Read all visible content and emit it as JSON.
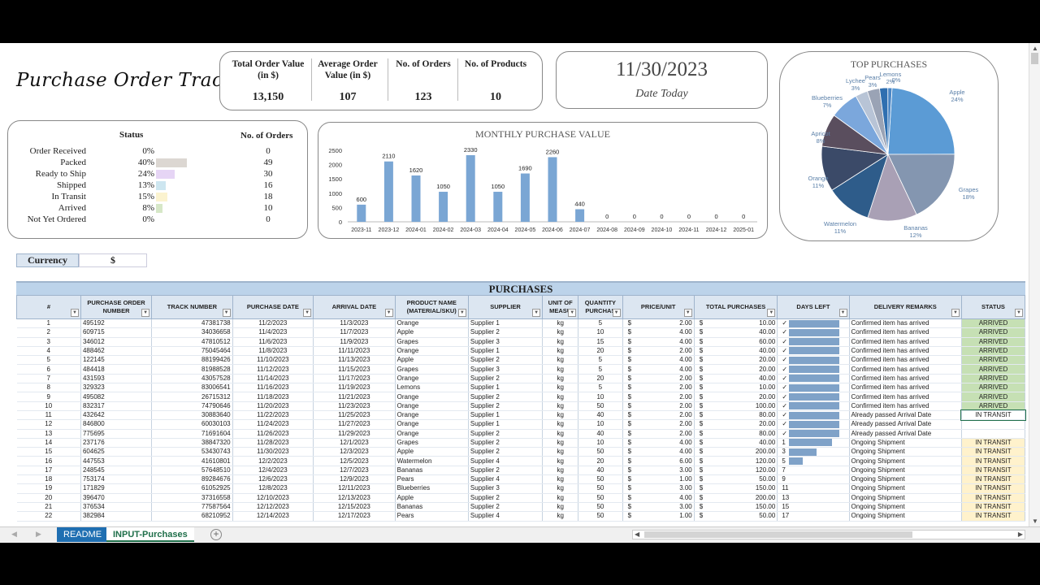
{
  "title": "Purchase Order Tracker",
  "kpis": [
    {
      "label": "Total Order Value (in $)",
      "value": "13,150"
    },
    {
      "label": "Average Order Value (in $)",
      "value": "107"
    },
    {
      "label": "No. of Orders",
      "value": "123"
    },
    {
      "label": "No. of Products",
      "value": "10"
    }
  ],
  "date": {
    "value": "11/30/2023",
    "caption": "Date Today"
  },
  "status_summary": {
    "header_status": "Status",
    "header_orders": "No. of Orders",
    "rows": [
      {
        "label": "Order Received",
        "pct": "0%",
        "count": "0",
        "fraction": 0.0,
        "color": "#d9d9d9"
      },
      {
        "label": "Packed",
        "pct": "40%",
        "count": "49",
        "fraction": 0.4,
        "color": "#dcd7d2"
      },
      {
        "label": "Ready to Ship",
        "pct": "24%",
        "count": "30",
        "fraction": 0.24,
        "color": "#e6d5f5"
      },
      {
        "label": "Shipped",
        "pct": "13%",
        "count": "16",
        "fraction": 0.13,
        "color": "#cde6f0"
      },
      {
        "label": "In Transit",
        "pct": "15%",
        "count": "18",
        "fraction": 0.15,
        "color": "#fbf3cf"
      },
      {
        "label": "Arrived",
        "pct": "8%",
        "count": "10",
        "fraction": 0.08,
        "color": "#d6e7c7"
      },
      {
        "label": "Not Yet Ordered",
        "pct": "0%",
        "count": "0",
        "fraction": 0.0,
        "color": "#d9d9d9"
      }
    ]
  },
  "chart_data": [
    {
      "type": "bar",
      "title": "MONTHLY PURCHASE VALUE",
      "categories": [
        "2023-11",
        "2023-12",
        "2024-01",
        "2024-02",
        "2024-03",
        "2024-04",
        "2024-05",
        "2024-06",
        "2024-07",
        "2024-08",
        "2024-09",
        "2024-10",
        "2024-11",
        "2024-12",
        "2025-01"
      ],
      "values": [
        600,
        2110,
        1620,
        1050,
        2330,
        1050,
        1690,
        2260,
        440,
        0,
        0,
        0,
        0,
        0,
        0
      ],
      "data_labels": [
        "600",
        "2110",
        "1620",
        "1050",
        "2330",
        "1050",
        "1690",
        "2260",
        "440",
        "0",
        "0",
        "0",
        "0",
        "0",
        "0"
      ],
      "yticks": [
        "0",
        "500",
        "1000",
        "1500",
        "2000",
        "2500"
      ],
      "ylim": [
        0,
        2500
      ],
      "color": "#7aa6d4"
    },
    {
      "type": "pie",
      "title": "TOP PURCHASES",
      "slices": [
        {
          "label": "Apple",
          "pct": "24%",
          "value": 24,
          "color": "#5b9bd5"
        },
        {
          "label": "Grapes",
          "pct": "18%",
          "value": 18,
          "color": "#8496b0"
        },
        {
          "label": "Bananas",
          "pct": "12%",
          "value": 12,
          "color": "#a9a0b5"
        },
        {
          "label": "Watermelon",
          "pct": "11%",
          "value": 11,
          "color": "#2e5c8a"
        },
        {
          "label": "Orange",
          "pct": "11%",
          "value": 11,
          "color": "#3b4a68"
        },
        {
          "label": "Apricot",
          "pct": "8%",
          "value": 8,
          "color": "#5a4e5e"
        },
        {
          "label": "Blueberries",
          "pct": "7%",
          "value": 7,
          "color": "#7ba7dc"
        },
        {
          "label": "Lychee",
          "pct": "3%",
          "value": 3,
          "color": "#b8c4d6"
        },
        {
          "label": "Pears",
          "pct": "3%",
          "value": 3,
          "color": "#9aa3b5"
        },
        {
          "label": "Lemons",
          "pct": "2%",
          "value": 2,
          "color": "#2f6fb0"
        },
        {
          "label": "",
          "pct": "0%",
          "value": 1,
          "color": "#4a86c5"
        }
      ]
    }
  ],
  "currency": {
    "label": "Currency",
    "value": "$"
  },
  "table": {
    "title": "PURCHASES",
    "headers": [
      "#",
      "PURCHASE ORDER NUMBER",
      "TRACK NUMBER",
      "PURCHASE DATE",
      "ARRIVAL DATE",
      "PRODUCT NAME (MATERIAL/SKU)",
      "SUPPLIER",
      "UNIT OF MEASU",
      "QUANTITY PURCHAS",
      "PRICE/UNIT",
      "TOTAL PURCHASES",
      "DAYS LEFT",
      "DELIVERY REMARKS",
      "STATUS"
    ],
    "rows": [
      [
        "1",
        "495192",
        "47381738",
        "11/2/2023",
        "11/3/2023",
        "Orange",
        "Supplier 1",
        "kg",
        "5",
        "2.00",
        "10.00",
        "✓",
        "Confirmed item has arrived",
        "ARRIVED"
      ],
      [
        "2",
        "609715",
        "34036658",
        "11/4/2023",
        "11/7/2023",
        "Apple",
        "Supplier 2",
        "kg",
        "10",
        "4.00",
        "40.00",
        "✓",
        "Confirmed item has arrived",
        "ARRIVED"
      ],
      [
        "3",
        "346012",
        "47810512",
        "11/6/2023",
        "11/9/2023",
        "Grapes",
        "Supplier 3",
        "kg",
        "15",
        "4.00",
        "60.00",
        "✓",
        "Confirmed item has arrived",
        "ARRIVED"
      ],
      [
        "4",
        "488462",
        "75045464",
        "11/8/2023",
        "11/11/2023",
        "Orange",
        "Supplier 1",
        "kg",
        "20",
        "2.00",
        "40.00",
        "✓",
        "Confirmed item has arrived",
        "ARRIVED"
      ],
      [
        "5",
        "122145",
        "88199426",
        "11/10/2023",
        "11/13/2023",
        "Apple",
        "Supplier 2",
        "kg",
        "5",
        "4.00",
        "20.00",
        "✓",
        "Confirmed item has arrived",
        "ARRIVED"
      ],
      [
        "6",
        "484418",
        "81988528",
        "11/12/2023",
        "11/15/2023",
        "Grapes",
        "Supplier 3",
        "kg",
        "5",
        "4.00",
        "20.00",
        "✓",
        "Confirmed item has arrived",
        "ARRIVED"
      ],
      [
        "7",
        "431593",
        "43057528",
        "11/14/2023",
        "11/17/2023",
        "Orange",
        "Supplier 2",
        "kg",
        "20",
        "2.00",
        "40.00",
        "✓",
        "Confirmed item has arrived",
        "ARRIVED"
      ],
      [
        "8",
        "329323",
        "83006541",
        "11/16/2023",
        "11/19/2023",
        "Lemons",
        "Supplier 1",
        "kg",
        "5",
        "2.00",
        "10.00",
        "✓",
        "Confirmed item has arrived",
        "ARRIVED"
      ],
      [
        "9",
        "495082",
        "26715312",
        "11/18/2023",
        "11/21/2023",
        "Orange",
        "Supplier 2",
        "kg",
        "10",
        "2.00",
        "20.00",
        "✓",
        "Confirmed item has arrived",
        "ARRIVED"
      ],
      [
        "10",
        "832317",
        "74790646",
        "11/20/2023",
        "11/23/2023",
        "Orange",
        "Supplier 2",
        "kg",
        "50",
        "2.00",
        "100.00",
        "✓",
        "Confirmed item has arrived",
        "ARRIVED"
      ],
      [
        "11",
        "432642",
        "30883640",
        "11/22/2023",
        "11/25/2023",
        "Orange",
        "Supplier 1",
        "kg",
        "40",
        "2.00",
        "80.00",
        "✓",
        "Already passed Arrival Date",
        "IN TRANSIT"
      ],
      [
        "12",
        "846800",
        "60030103",
        "11/24/2023",
        "11/27/2023",
        "Orange",
        "Supplier 1",
        "kg",
        "10",
        "2.00",
        "20.00",
        "✓",
        "Already passed Arrival Date",
        ""
      ],
      [
        "13",
        "775695",
        "71691604",
        "11/26/2023",
        "11/29/2023",
        "Orange",
        "Supplier 2",
        "kg",
        "40",
        "2.00",
        "80.00",
        "✓",
        "Already passed Arrival Date",
        ""
      ],
      [
        "14",
        "237176",
        "38847320",
        "11/28/2023",
        "12/1/2023",
        "Grapes",
        "Supplier 2",
        "kg",
        "10",
        "4.00",
        "40.00",
        "1",
        "Ongoing Shipment",
        "IN TRANSIT"
      ],
      [
        "15",
        "604625",
        "53430743",
        "11/30/2023",
        "12/3/2023",
        "Apple",
        "Supplier 2",
        "kg",
        "50",
        "4.00",
        "200.00",
        "3",
        "Ongoing Shipment",
        "IN TRANSIT"
      ],
      [
        "16",
        "447553",
        "41610801",
        "12/2/2023",
        "12/5/2023",
        "Watermelon",
        "Supplier 4",
        "kg",
        "20",
        "6.00",
        "120.00",
        "5",
        "Ongoing Shipment",
        "IN TRANSIT"
      ],
      [
        "17",
        "248545",
        "57648510",
        "12/4/2023",
        "12/7/2023",
        "Bananas",
        "Supplier 2",
        "kg",
        "40",
        "3.00",
        "120.00",
        "7",
        "Ongoing Shipment",
        "IN TRANSIT"
      ],
      [
        "18",
        "753174",
        "89284676",
        "12/6/2023",
        "12/9/2023",
        "Pears",
        "Supplier 4",
        "kg",
        "50",
        "1.00",
        "50.00",
        "9",
        "Ongoing Shipment",
        "IN TRANSIT"
      ],
      [
        "19",
        "171829",
        "61052925",
        "12/8/2023",
        "12/11/2023",
        "Blueberries",
        "Supplier 3",
        "kg",
        "50",
        "3.00",
        "150.00",
        "11",
        "Ongoing Shipment",
        "IN TRANSIT"
      ],
      [
        "20",
        "396470",
        "37316558",
        "12/10/2023",
        "12/13/2023",
        "Apple",
        "Supplier 2",
        "kg",
        "50",
        "4.00",
        "200.00",
        "13",
        "Ongoing Shipment",
        "IN TRANSIT"
      ],
      [
        "21",
        "376534",
        "77587564",
        "12/12/2023",
        "12/15/2023",
        "Bananas",
        "Supplier 2",
        "kg",
        "50",
        "3.00",
        "150.00",
        "15",
        "Ongoing Shipment",
        "IN TRANSIT"
      ],
      [
        "22",
        "382984",
        "68210952",
        "12/14/2023",
        "12/17/2023",
        "Pears",
        "Supplier 4",
        "kg",
        "50",
        "1.00",
        "50.00",
        "17",
        "Ongoing Shipment",
        "IN TRANSIT"
      ]
    ],
    "days_left_fraction": [
      1,
      1,
      1,
      1,
      1,
      1,
      1,
      1,
      1,
      1,
      1,
      1,
      1,
      0.85,
      0.55,
      0.28,
      0,
      0,
      0,
      0,
      0,
      0
    ]
  },
  "tabs": [
    {
      "label": "README",
      "active": false
    },
    {
      "label": "INPUT-Purchases",
      "active": true
    }
  ],
  "colors": {
    "accent": "#1f6fb2",
    "header_fill": "#dce6f1",
    "arrived": "#c6e0b4",
    "in_transit": "#fff2cc"
  }
}
